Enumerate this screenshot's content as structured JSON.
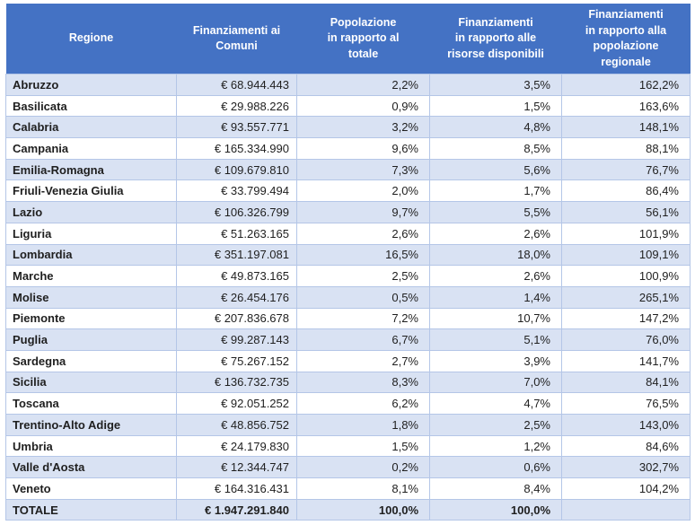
{
  "chart_data": {
    "type": "table",
    "columns": [
      "Regione",
      "Finanziamenti ai\nComuni",
      "Popolazione\nin rapporto al\ntotale",
      "Finanziamenti\nin rapporto alle\nrisorse disponibili",
      "Finanziamenti\nin rapporto alla\npopolazione\nregionale"
    ],
    "rows": [
      [
        "Abruzzo",
        "€ 68.944.443",
        "2,2%",
        "3,5%",
        "162,2%"
      ],
      [
        "Basilicata",
        "€ 29.988.226",
        "0,9%",
        "1,5%",
        "163,6%"
      ],
      [
        "Calabria",
        "€ 93.557.771",
        "3,2%",
        "4,8%",
        "148,1%"
      ],
      [
        "Campania",
        "€ 165.334.990",
        "9,6%",
        "8,5%",
        "88,1%"
      ],
      [
        "Emilia-Romagna",
        "€ 109.679.810",
        "7,3%",
        "5,6%",
        "76,7%"
      ],
      [
        "Friuli-Venezia Giulia",
        "€ 33.799.494",
        "2,0%",
        "1,7%",
        "86,4%"
      ],
      [
        "Lazio",
        "€ 106.326.799",
        "9,7%",
        "5,5%",
        "56,1%"
      ],
      [
        "Liguria",
        "€ 51.263.165",
        "2,6%",
        "2,6%",
        "101,9%"
      ],
      [
        "Lombardia",
        "€ 351.197.081",
        "16,5%",
        "18,0%",
        "109,1%"
      ],
      [
        "Marche",
        "€ 49.873.165",
        "2,5%",
        "2,6%",
        "100,9%"
      ],
      [
        "Molise",
        "€ 26.454.176",
        "0,5%",
        "1,4%",
        "265,1%"
      ],
      [
        "Piemonte",
        "€ 207.836.678",
        "7,2%",
        "10,7%",
        "147,2%"
      ],
      [
        "Puglia",
        "€ 99.287.143",
        "6,7%",
        "5,1%",
        "76,0%"
      ],
      [
        "Sardegna",
        "€ 75.267.152",
        "2,7%",
        "3,9%",
        "141,7%"
      ],
      [
        "Sicilia",
        "€ 136.732.735",
        "8,3%",
        "7,0%",
        "84,1%"
      ],
      [
        "Toscana",
        "€ 92.051.252",
        "6,2%",
        "4,7%",
        "76,5%"
      ],
      [
        "Trentino-Alto Adige",
        "€ 48.856.752",
        "1,8%",
        "2,5%",
        "143,0%"
      ],
      [
        "Umbria",
        "€ 24.179.830",
        "1,5%",
        "1,2%",
        "84,6%"
      ],
      [
        "Valle d'Aosta",
        "€ 12.344.747",
        "0,2%",
        "0,6%",
        "302,7%"
      ],
      [
        "Veneto",
        "€ 164.316.431",
        "8,1%",
        "8,4%",
        "104,2%"
      ]
    ],
    "total_row": [
      "TOTALE",
      "€ 1.947.291.840",
      "100,0%",
      "100,0%",
      ""
    ]
  },
  "colors": {
    "header_bg": "#4472C4",
    "header_text": "#FFFFFF",
    "band_bg": "#D9E2F3",
    "white_bg": "#FFFFFF",
    "border_color": "#B4C6E7",
    "body_text": "#1F1F1F"
  }
}
